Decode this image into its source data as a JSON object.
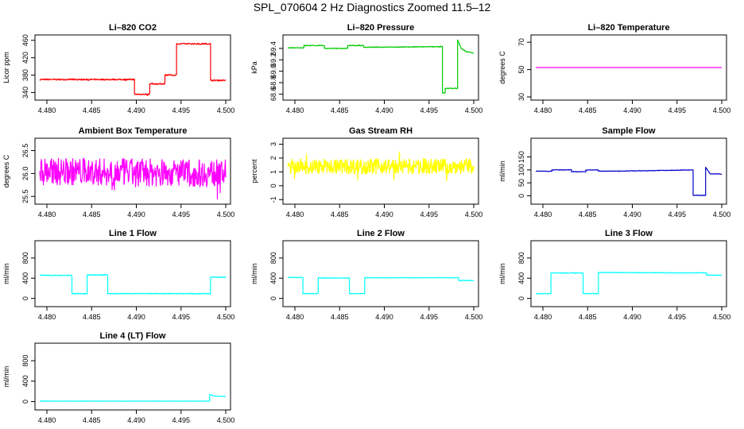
{
  "page_title": "SPL_070604  2 Hz Diagnostics Zoomed 11.5–12",
  "chart_data": [
    {
      "type": "line",
      "title": "Li–820 CO2",
      "ylabel": "Licor ppm",
      "color": "#ff0000",
      "xlim": [
        4.4792,
        4.5
      ],
      "ylim": [
        330,
        465
      ],
      "xticks": [
        "4.480",
        "4.485",
        "4.490",
        "4.495",
        "4.500"
      ],
      "yticks": [
        "340",
        "380",
        "420",
        "460"
      ],
      "series": [
        {
          "values": [
            [
              4.4792,
              370
            ],
            [
              4.4898,
              370
            ],
            [
              4.4898,
              336
            ],
            [
              4.4915,
              336
            ],
            [
              4.4915,
              360
            ],
            [
              4.4932,
              360
            ],
            [
              4.4932,
              380
            ],
            [
              4.4945,
              380
            ],
            [
              4.4945,
              452
            ],
            [
              4.4983,
              452
            ],
            [
              4.4983,
              368
            ],
            [
              4.5,
              368
            ]
          ],
          "noise": 1.5
        }
      ]
    },
    {
      "type": "line",
      "title": "Li–820 Pressure",
      "ylabel": "kPa",
      "color": "#00cc00",
      "xlim": [
        4.4792,
        4.5
      ],
      "ylim": [
        68.55,
        69.58
      ],
      "xticks": [
        "4.480",
        "4.485",
        "4.490",
        "4.495",
        "4.500"
      ],
      "yticks": [
        "68.6",
        "68.8",
        "69.0",
        "69.2",
        "69.4"
      ],
      "series": [
        {
          "values": [
            [
              4.4792,
              69.41
            ],
            [
              4.481,
              69.41
            ],
            [
              4.481,
              69.45
            ],
            [
              4.4833,
              69.45
            ],
            [
              4.4833,
              69.4
            ],
            [
              4.4846,
              69.4
            ],
            [
              4.4846,
              69.4
            ],
            [
              4.4859,
              69.4
            ],
            [
              4.4859,
              69.45
            ],
            [
              4.4877,
              69.45
            ],
            [
              4.4877,
              69.42
            ],
            [
              4.4965,
              69.43
            ],
            [
              4.4965,
              68.62
            ],
            [
              4.4968,
              68.62
            ],
            [
              4.4968,
              68.7
            ],
            [
              4.4982,
              68.7
            ],
            [
              4.4982,
              69.55
            ],
            [
              4.4986,
              69.4
            ],
            [
              4.4992,
              69.34
            ],
            [
              4.5,
              69.32
            ]
          ],
          "noise": 0.006
        }
      ]
    },
    {
      "type": "line",
      "title": "Li–820 Temperature",
      "ylabel": "degrees C",
      "color": "#ff00ff",
      "xlim": [
        4.4792,
        4.5
      ],
      "ylim": [
        30,
        73
      ],
      "xticks": [
        "4.480",
        "4.485",
        "4.490",
        "4.495",
        "4.500"
      ],
      "yticks": [
        "30",
        "50",
        "70"
      ],
      "series": [
        {
          "values": [
            [
              4.4792,
              51.5
            ],
            [
              4.5,
              51.5
            ]
          ],
          "noise": 0
        }
      ]
    },
    {
      "type": "line",
      "title": "Ambient Box Temperature",
      "ylabel": "degrees C",
      "color": "#ff00ff",
      "xlim": [
        4.4792,
        4.5
      ],
      "ylim": [
        25.4,
        26.7
      ],
      "xticks": [
        "4.480",
        "4.485",
        "4.490",
        "4.495",
        "4.500"
      ],
      "yticks": [
        "25.5",
        "26.0",
        "26.5"
      ],
      "series": [
        {
          "values": [
            [
              4.4792,
              26.05
            ],
            [
              4.5,
              26.0
            ]
          ],
          "noise": 0.3
        }
      ]
    },
    {
      "type": "line",
      "title": "Gas Stream RH",
      "ylabel": "percent",
      "color": "#ffff00",
      "xlim": [
        4.4792,
        4.5
      ],
      "ylim": [
        -1.1,
        3.2
      ],
      "xticks": [
        "4.480",
        "4.485",
        "4.490",
        "4.495",
        "4.500"
      ],
      "yticks": [
        "-1",
        "0",
        "1",
        "2",
        "3"
      ],
      "series": [
        {
          "values": [
            [
              4.4792,
              1.4
            ],
            [
              4.5,
              1.4
            ]
          ],
          "noise": 0.55
        }
      ]
    },
    {
      "type": "line",
      "title": "Sample Flow",
      "ylabel": "ml/min",
      "color": "#0000cc",
      "xlim": [
        4.4792,
        4.5
      ],
      "ylim": [
        -20,
        210
      ],
      "xticks": [
        "4.480",
        "4.485",
        "4.490",
        "4.495",
        "4.500"
      ],
      "yticks": [
        "0",
        "50",
        "100",
        "150"
      ],
      "series": [
        {
          "values": [
            [
              4.4792,
              95
            ],
            [
              4.481,
              95
            ],
            [
              4.481,
              100
            ],
            [
              4.4832,
              100
            ],
            [
              4.4832,
              93
            ],
            [
              4.4848,
              93
            ],
            [
              4.4848,
              100
            ],
            [
              4.4862,
              100
            ],
            [
              4.4862,
              95
            ],
            [
              4.4875,
              95
            ],
            [
              4.4935,
              98
            ],
            [
              4.4968,
              100
            ],
            [
              4.4968,
              2
            ],
            [
              4.4982,
              2
            ],
            [
              4.4982,
              110
            ],
            [
              4.4987,
              85
            ],
            [
              4.5,
              84
            ]
          ],
          "noise": 1
        }
      ]
    },
    {
      "type": "line",
      "title": "Line 1 Flow",
      "ylabel": "ml/min",
      "color": "#00ffff",
      "xlim": [
        4.4792,
        4.5
      ],
      "ylim": [
        -100,
        1080
      ],
      "xticks": [
        "4.480",
        "4.485",
        "4.490",
        "4.495",
        "4.500"
      ],
      "yticks": [
        "0",
        "400",
        "800"
      ],
      "series": [
        {
          "values": [
            [
              4.4792,
              460
            ],
            [
              4.4828,
              455
            ],
            [
              4.4828,
              95
            ],
            [
              4.4845,
              95
            ],
            [
              4.4845,
              465
            ],
            [
              4.4868,
              465
            ],
            [
              4.4868,
              95
            ],
            [
              4.4983,
              95
            ],
            [
              4.4983,
              420
            ],
            [
              4.5,
              420
            ]
          ],
          "noise": 8
        }
      ]
    },
    {
      "type": "line",
      "title": "Line 2 Flow",
      "ylabel": "ml/min",
      "color": "#00ffff",
      "xlim": [
        4.4792,
        4.5
      ],
      "ylim": [
        -100,
        1080
      ],
      "xticks": [
        "4.480",
        "4.485",
        "4.490",
        "4.495",
        "4.500"
      ],
      "yticks": [
        "0",
        "400",
        "800"
      ],
      "series": [
        {
          "values": [
            [
              4.4792,
              415
            ],
            [
              4.4809,
              415
            ],
            [
              4.4809,
              95
            ],
            [
              4.4826,
              95
            ],
            [
              4.4826,
              405
            ],
            [
              4.4861,
              405
            ],
            [
              4.4861,
              95
            ],
            [
              4.4878,
              95
            ],
            [
              4.4878,
              410
            ],
            [
              4.4983,
              410
            ],
            [
              4.4983,
              355
            ],
            [
              4.5,
              355
            ]
          ],
          "noise": 6
        }
      ]
    },
    {
      "type": "line",
      "title": "Line 3 Flow",
      "ylabel": "ml/min",
      "color": "#00ffff",
      "xlim": [
        4.4792,
        4.5
      ],
      "ylim": [
        -100,
        1080
      ],
      "xticks": [
        "4.480",
        "4.485",
        "4.490",
        "4.495",
        "4.500"
      ],
      "yticks": [
        "0",
        "400",
        "800"
      ],
      "series": [
        {
          "values": [
            [
              4.4792,
              95
            ],
            [
              4.4809,
              95
            ],
            [
              4.4809,
              505
            ],
            [
              4.4845,
              505
            ],
            [
              4.4845,
              95
            ],
            [
              4.4862,
              95
            ],
            [
              4.4862,
              515
            ],
            [
              4.4983,
              505
            ],
            [
              4.4983,
              460
            ],
            [
              4.5,
              460
            ]
          ],
          "noise": 6
        }
      ]
    },
    {
      "type": "line",
      "title": "Line 4 (LT) Flow",
      "ylabel": "ml/min",
      "color": "#00ffff",
      "xlim": [
        4.4792,
        4.5
      ],
      "ylim": [
        -100,
        1080
      ],
      "xticks": [
        "4.480",
        "4.485",
        "4.490",
        "4.495",
        "4.500"
      ],
      "yticks": [
        "0",
        "400",
        "800"
      ],
      "series": [
        {
          "values": [
            [
              4.4792,
              10
            ],
            [
              4.4982,
              10
            ],
            [
              4.4982,
              140
            ],
            [
              4.4987,
              110
            ],
            [
              4.5,
              100
            ]
          ],
          "noise": 3
        }
      ]
    }
  ]
}
